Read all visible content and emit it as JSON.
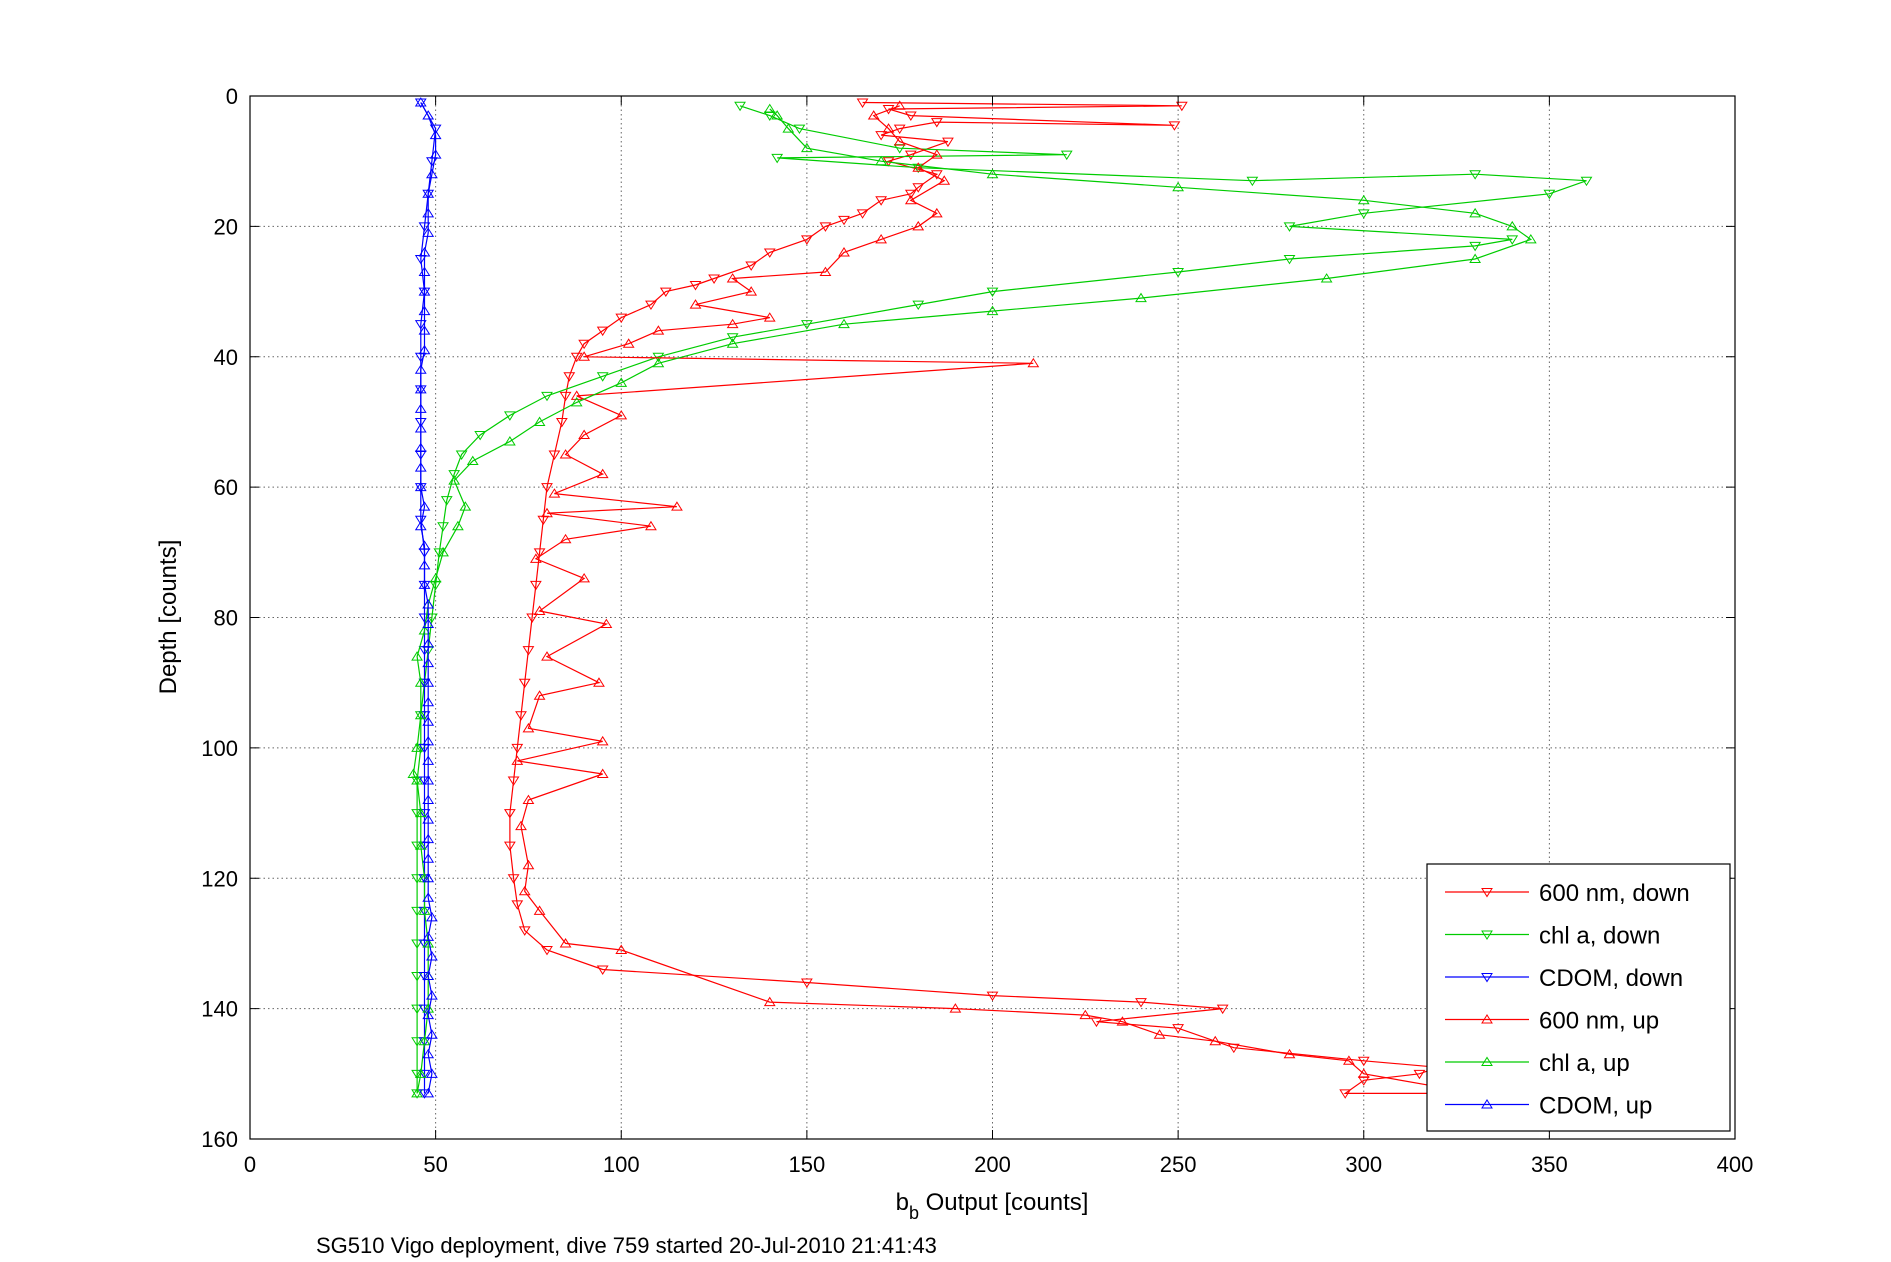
{
  "chart_data": {
    "type": "line",
    "xlabel_main": "b",
    "xlabel_sub": "b",
    "xlabel_rest": " Output [counts]",
    "ylabel": "Depth [counts]",
    "caption": "SG510 Vigo deployment, dive 759 started 20-Jul-2010 21:41:43",
    "xlim": [
      0,
      400
    ],
    "ylim": [
      0,
      160
    ],
    "y_reversed": true,
    "grid": true,
    "legend_position": "bottom-right",
    "xticks": [
      0,
      50,
      100,
      150,
      200,
      250,
      300,
      350,
      400
    ],
    "yticks": [
      0,
      20,
      40,
      60,
      80,
      100,
      120,
      140,
      160
    ],
    "series": [
      {
        "name": "600 nm, down",
        "color": "#ff0000",
        "marker": "triangle-down",
        "points": [
          [
            165,
            1
          ],
          [
            251,
            1.5
          ],
          [
            172,
            2
          ],
          [
            178,
            3
          ],
          [
            249,
            4.5
          ],
          [
            185,
            4
          ],
          [
            175,
            5
          ],
          [
            170,
            6
          ],
          [
            188,
            7
          ],
          [
            178,
            9
          ],
          [
            172,
            10
          ],
          [
            185,
            12
          ],
          [
            180,
            14
          ],
          [
            178,
            15
          ],
          [
            170,
            16
          ],
          [
            165,
            18
          ],
          [
            160,
            19
          ],
          [
            155,
            20
          ],
          [
            150,
            22
          ],
          [
            140,
            24
          ],
          [
            135,
            26
          ],
          [
            125,
            28
          ],
          [
            120,
            29
          ],
          [
            112,
            30
          ],
          [
            108,
            32
          ],
          [
            100,
            34
          ],
          [
            95,
            36
          ],
          [
            90,
            38
          ],
          [
            88,
            40
          ],
          [
            86,
            43
          ],
          [
            85,
            46
          ],
          [
            84,
            50
          ],
          [
            82,
            55
          ],
          [
            80,
            60
          ],
          [
            79,
            65
          ],
          [
            78,
            70
          ],
          [
            77,
            75
          ],
          [
            76,
            80
          ],
          [
            75,
            85
          ],
          [
            74,
            90
          ],
          [
            73,
            95
          ],
          [
            72,
            100
          ],
          [
            71,
            105
          ],
          [
            70,
            110
          ],
          [
            70,
            115
          ],
          [
            71,
            120
          ],
          [
            72,
            124
          ],
          [
            74,
            128
          ],
          [
            80,
            131
          ],
          [
            95,
            134
          ],
          [
            150,
            136
          ],
          [
            200,
            138
          ],
          [
            240,
            139
          ],
          [
            262,
            140
          ],
          [
            228,
            142
          ],
          [
            250,
            143
          ],
          [
            265,
            146
          ],
          [
            300,
            148
          ],
          [
            320,
            149
          ],
          [
            315,
            150
          ],
          [
            300,
            151
          ],
          [
            295,
            153
          ],
          [
            320,
            153
          ]
        ]
      },
      {
        "name": "chl a, down",
        "color": "#00cc00",
        "marker": "triangle-down",
        "points": [
          [
            132,
            1.5
          ],
          [
            140,
            3
          ],
          [
            148,
            5
          ],
          [
            175,
            8
          ],
          [
            220,
            9
          ],
          [
            142,
            9.5
          ],
          [
            180,
            11
          ],
          [
            270,
            13
          ],
          [
            330,
            12
          ],
          [
            360,
            13
          ],
          [
            350,
            15
          ],
          [
            300,
            18
          ],
          [
            280,
            20
          ],
          [
            340,
            22
          ],
          [
            330,
            23
          ],
          [
            280,
            25
          ],
          [
            250,
            27
          ],
          [
            200,
            30
          ],
          [
            180,
            32
          ],
          [
            150,
            35
          ],
          [
            130,
            37
          ],
          [
            110,
            40
          ],
          [
            95,
            43
          ],
          [
            80,
            46
          ],
          [
            70,
            49
          ],
          [
            62,
            52
          ],
          [
            57,
            55
          ],
          [
            55,
            58
          ],
          [
            53,
            62
          ],
          [
            52,
            66
          ],
          [
            51,
            70
          ],
          [
            50,
            75
          ],
          [
            49,
            80
          ],
          [
            48,
            85
          ],
          [
            47,
            90
          ],
          [
            46,
            95
          ],
          [
            46,
            100
          ],
          [
            45,
            105
          ],
          [
            45,
            110
          ],
          [
            45,
            115
          ],
          [
            45,
            120
          ],
          [
            45,
            125
          ],
          [
            45,
            130
          ],
          [
            45,
            135
          ],
          [
            45,
            140
          ],
          [
            45,
            145
          ],
          [
            45,
            150
          ],
          [
            45,
            153
          ]
        ]
      },
      {
        "name": "CDOM, down",
        "color": "#0000ff",
        "marker": "triangle-down",
        "points": [
          [
            46,
            1
          ],
          [
            50,
            5
          ],
          [
            49,
            10
          ],
          [
            48,
            15
          ],
          [
            47,
            20
          ],
          [
            46,
            25
          ],
          [
            47,
            30
          ],
          [
            46,
            35
          ],
          [
            46,
            40
          ],
          [
            46,
            45
          ],
          [
            46,
            50
          ],
          [
            46,
            55
          ],
          [
            46,
            60
          ],
          [
            46,
            65
          ],
          [
            47,
            70
          ],
          [
            47,
            75
          ],
          [
            47,
            80
          ],
          [
            47,
            85
          ],
          [
            47,
            90
          ],
          [
            47,
            95
          ],
          [
            47,
            100
          ],
          [
            47,
            105
          ],
          [
            47,
            110
          ],
          [
            47,
            115
          ],
          [
            47,
            120
          ],
          [
            47,
            125
          ],
          [
            47,
            130
          ],
          [
            47,
            135
          ],
          [
            47,
            140
          ],
          [
            47,
            145
          ],
          [
            47,
            150
          ],
          [
            47,
            153
          ]
        ]
      },
      {
        "name": "600 nm, up",
        "color": "#ff0000",
        "marker": "triangle-up",
        "points": [
          [
            320,
            152
          ],
          [
            300,
            150
          ],
          [
            296,
            148
          ],
          [
            280,
            147
          ],
          [
            260,
            145
          ],
          [
            245,
            144
          ],
          [
            235,
            142
          ],
          [
            225,
            141
          ],
          [
            190,
            140
          ],
          [
            140,
            139
          ],
          [
            100,
            131
          ],
          [
            85,
            130
          ],
          [
            78,
            125
          ],
          [
            74,
            122
          ],
          [
            75,
            118
          ],
          [
            73,
            112
          ],
          [
            75,
            108
          ],
          [
            95,
            104
          ],
          [
            72,
            102
          ],
          [
            95,
            99
          ],
          [
            75,
            97
          ],
          [
            78,
            92
          ],
          [
            94,
            90
          ],
          [
            80,
            86
          ],
          [
            96,
            81
          ],
          [
            78,
            79
          ],
          [
            90,
            74
          ],
          [
            77,
            71
          ],
          [
            85,
            68
          ],
          [
            108,
            66
          ],
          [
            80,
            64
          ],
          [
            115,
            63
          ],
          [
            82,
            61
          ],
          [
            95,
            58
          ],
          [
            85,
            55
          ],
          [
            90,
            52
          ],
          [
            100,
            49
          ],
          [
            88,
            46
          ],
          [
            211,
            41
          ],
          [
            90,
            40
          ],
          [
            102,
            38
          ],
          [
            110,
            36
          ],
          [
            130,
            35
          ],
          [
            140,
            34
          ],
          [
            120,
            32
          ],
          [
            135,
            30
          ],
          [
            130,
            28
          ],
          [
            155,
            27
          ],
          [
            160,
            24
          ],
          [
            170,
            22
          ],
          [
            180,
            20
          ],
          [
            185,
            18
          ],
          [
            178,
            16
          ],
          [
            187,
            13
          ],
          [
            180,
            11
          ],
          [
            185,
            9
          ],
          [
            175,
            7
          ],
          [
            172,
            5
          ],
          [
            168,
            3
          ],
          [
            175,
            1.5
          ]
        ]
      },
      {
        "name": "chl a, up",
        "color": "#00cc00",
        "marker": "triangle-up",
        "points": [
          [
            45,
            153
          ],
          [
            46,
            150
          ],
          [
            47,
            145
          ],
          [
            48,
            140
          ],
          [
            48,
            135
          ],
          [
            48,
            130
          ],
          [
            47,
            125
          ],
          [
            47,
            120
          ],
          [
            46,
            115
          ],
          [
            46,
            110
          ],
          [
            45,
            105
          ],
          [
            44,
            104
          ],
          [
            45,
            100
          ],
          [
            46,
            95
          ],
          [
            46,
            90
          ],
          [
            45,
            86
          ],
          [
            47,
            82
          ],
          [
            48,
            78
          ],
          [
            50,
            74
          ],
          [
            52,
            70
          ],
          [
            56,
            66
          ],
          [
            58,
            63
          ],
          [
            55,
            59
          ],
          [
            60,
            56
          ],
          [
            70,
            53
          ],
          [
            78,
            50
          ],
          [
            88,
            47
          ],
          [
            100,
            44
          ],
          [
            110,
            41
          ],
          [
            130,
            38
          ],
          [
            160,
            35
          ],
          [
            200,
            33
          ],
          [
            240,
            31
          ],
          [
            290,
            28
          ],
          [
            330,
            25
          ],
          [
            345,
            22
          ],
          [
            340,
            20
          ],
          [
            330,
            18
          ],
          [
            300,
            16
          ],
          [
            250,
            14
          ],
          [
            200,
            12
          ],
          [
            170,
            10
          ],
          [
            150,
            8
          ],
          [
            145,
            5
          ],
          [
            142,
            3
          ],
          [
            140,
            2
          ]
        ]
      },
      {
        "name": "CDOM, up",
        "color": "#0000ff",
        "marker": "triangle-up",
        "points": [
          [
            48,
            153
          ],
          [
            49,
            150
          ],
          [
            48,
            147
          ],
          [
            49,
            144
          ],
          [
            48,
            141
          ],
          [
            49,
            138
          ],
          [
            48,
            135
          ],
          [
            49,
            132
          ],
          [
            48,
            129
          ],
          [
            49,
            126
          ],
          [
            48,
            123
          ],
          [
            48,
            120
          ],
          [
            48,
            117
          ],
          [
            48,
            114
          ],
          [
            48,
            111
          ],
          [
            48,
            108
          ],
          [
            48,
            105
          ],
          [
            48,
            102
          ],
          [
            48,
            99
          ],
          [
            48,
            96
          ],
          [
            48,
            93
          ],
          [
            48,
            90
          ],
          [
            48,
            87
          ],
          [
            48,
            84
          ],
          [
            48,
            81
          ],
          [
            48,
            78
          ],
          [
            47,
            75
          ],
          [
            47,
            72
          ],
          [
            47,
            69
          ],
          [
            46,
            66
          ],
          [
            47,
            63
          ],
          [
            46,
            60
          ],
          [
            46,
            57
          ],
          [
            46,
            54
          ],
          [
            46,
            51
          ],
          [
            46,
            48
          ],
          [
            46,
            45
          ],
          [
            46,
            42
          ],
          [
            47,
            39
          ],
          [
            47,
            36
          ],
          [
            47,
            33
          ],
          [
            47,
            30
          ],
          [
            47,
            27
          ],
          [
            47,
            24
          ],
          [
            48,
            21
          ],
          [
            48,
            18
          ],
          [
            48,
            15
          ],
          [
            49,
            12
          ],
          [
            50,
            9
          ],
          [
            50,
            6
          ],
          [
            48,
            3
          ],
          [
            46,
            1
          ]
        ]
      }
    ]
  }
}
